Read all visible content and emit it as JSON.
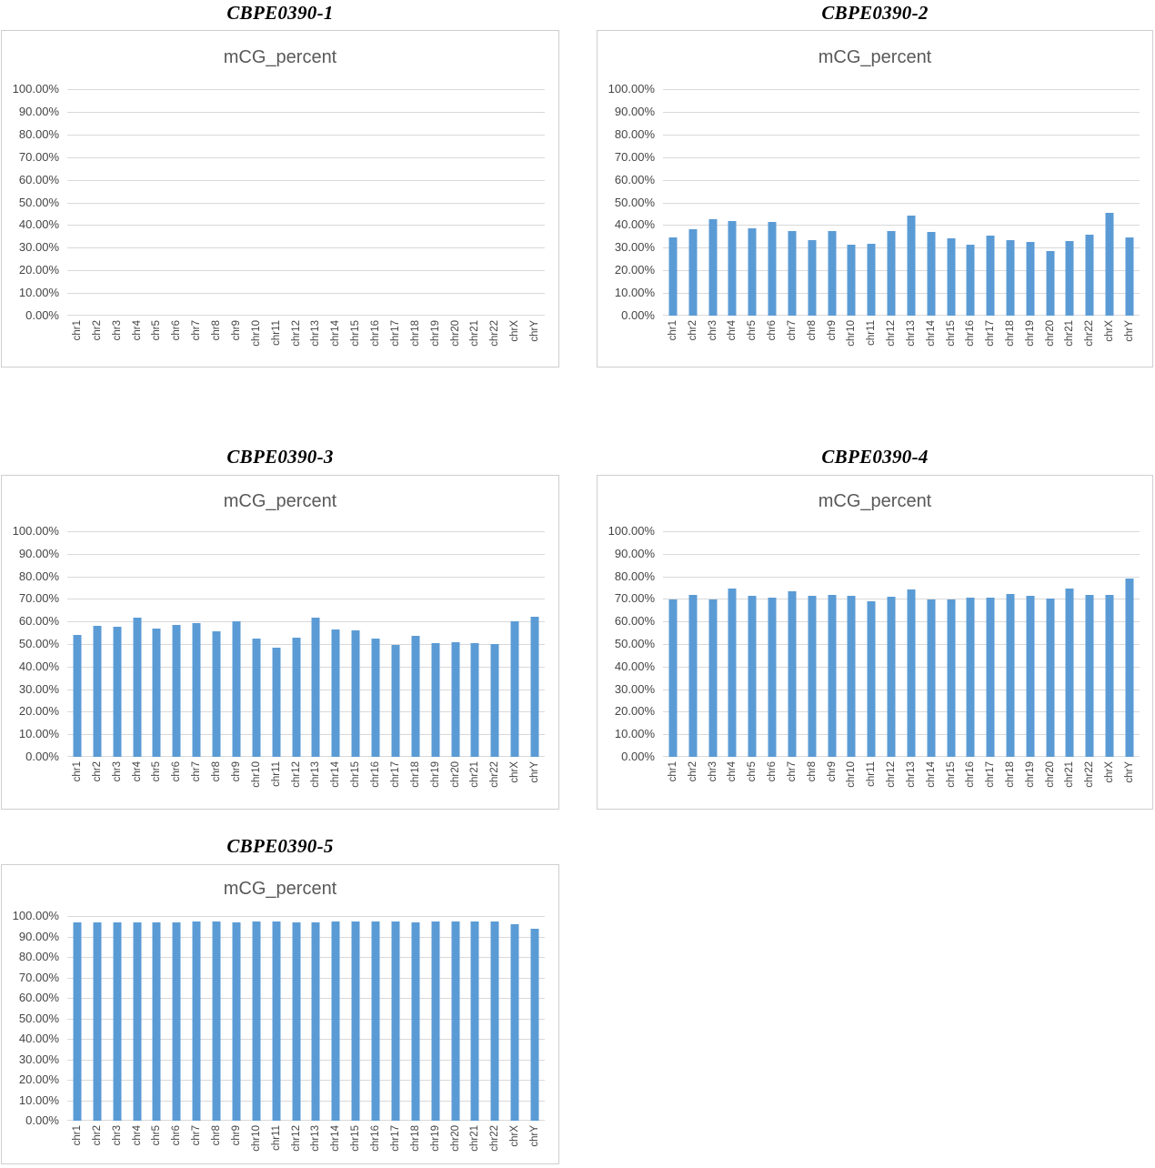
{
  "figure_header": "mCG_percent",
  "colors": {
    "bar": "#5b9bd5",
    "gridline": "#d9d9d9",
    "chart_border": "#d0cece",
    "chart_header_text": "#595959",
    "axis_label_text": "#454545",
    "panel_title_text": "#000000",
    "background": "#ffffff"
  },
  "chart_data": [
    {
      "type": "bar",
      "title": "CBPE0390-1",
      "chart_header": "mCG_percent",
      "categories": [
        "chr1",
        "chr2",
        "chr3",
        "chr4",
        "chr5",
        "chr6",
        "chr7",
        "chr8",
        "chr9",
        "chr10",
        "chr11",
        "chr12",
        "chr13",
        "chr14",
        "chr15",
        "chr16",
        "chr17",
        "chr18",
        "chr19",
        "chr20",
        "chr21",
        "chr22",
        "chrX",
        "chrY"
      ],
      "values": [],
      "xlabel": "",
      "ylabel": "",
      "ylim": [
        0,
        100
      ],
      "ytick_step": 10,
      "ytick_labels": [
        "100.00%",
        "90.00%",
        "80.00%",
        "70.00%",
        "60.00%",
        "50.00%",
        "40.00%",
        "30.00%",
        "20.00%",
        "10.00%",
        "0.00%"
      ],
      "grid": true,
      "legend": false,
      "bar_color": "#5b9bd5"
    },
    {
      "type": "bar",
      "title": "CBPE0390-2",
      "chart_header": "mCG_percent",
      "categories": [
        "chr1",
        "chr2",
        "chr3",
        "chr4",
        "chr5",
        "chr6",
        "chr7",
        "chr8",
        "chr9",
        "chr10",
        "chr11",
        "chr12",
        "chr13",
        "chr14",
        "chr15",
        "chr16",
        "chr17",
        "chr18",
        "chr19",
        "chr20",
        "chr21",
        "chr22",
        "chrX",
        "chrY"
      ],
      "values": [
        34.5,
        38.3,
        42.4,
        41.6,
        38.6,
        41.3,
        37.5,
        33.5,
        37.2,
        31.4,
        31.9,
        37.3,
        44.0,
        36.8,
        34.3,
        31.2,
        35.4,
        33.2,
        32.5,
        28.6,
        32.9,
        35.9,
        45.5,
        34.6
      ],
      "xlabel": "",
      "ylabel": "",
      "ylim": [
        0,
        100
      ],
      "ytick_step": 10,
      "ytick_labels": [
        "100.00%",
        "90.00%",
        "80.00%",
        "70.00%",
        "60.00%",
        "50.00%",
        "40.00%",
        "30.00%",
        "20.00%",
        "10.00%",
        "0.00%"
      ],
      "grid": true,
      "legend": false,
      "bar_color": "#5b9bd5"
    },
    {
      "type": "bar",
      "title": "CBPE0390-3",
      "chart_header": "mCG_percent",
      "categories": [
        "chr1",
        "chr2",
        "chr3",
        "chr4",
        "chr5",
        "chr6",
        "chr7",
        "chr8",
        "chr9",
        "chr10",
        "chr11",
        "chr12",
        "chr13",
        "chr14",
        "chr15",
        "chr16",
        "chr17",
        "chr18",
        "chr19",
        "chr20",
        "chr21",
        "chr22",
        "chrX",
        "chrY"
      ],
      "values": [
        53.9,
        57.9,
        57.5,
        61.9,
        56.7,
        58.3,
        59.2,
        55.5,
        59.9,
        52.5,
        48.4,
        52.7,
        61.8,
        56.6,
        55.9,
        52.3,
        49.8,
        53.8,
        50.5,
        51.0,
        50.6,
        50.2,
        60.1,
        62.0
      ],
      "xlabel": "",
      "ylabel": "",
      "ylim": [
        0,
        100
      ],
      "ytick_step": 10,
      "ytick_labels": [
        "100.00%",
        "90.00%",
        "80.00%",
        "70.00%",
        "60.00%",
        "50.00%",
        "40.00%",
        "30.00%",
        "20.00%",
        "10.00%",
        "0.00%"
      ],
      "grid": true,
      "legend": false,
      "bar_color": "#5b9bd5"
    },
    {
      "type": "bar",
      "title": "CBPE0390-4",
      "chart_header": "mCG_percent",
      "categories": [
        "chr1",
        "chr2",
        "chr3",
        "chr4",
        "chr5",
        "chr6",
        "chr7",
        "chr8",
        "chr9",
        "chr10",
        "chr11",
        "chr12",
        "chr13",
        "chr14",
        "chr15",
        "chr16",
        "chr17",
        "chr18",
        "chr19",
        "chr20",
        "chr21",
        "chr22",
        "chrX",
        "chrY"
      ],
      "values": [
        69.6,
        71.9,
        69.9,
        74.5,
        71.4,
        70.6,
        73.3,
        71.3,
        71.8,
        71.2,
        69.0,
        70.9,
        74.2,
        69.8,
        69.9,
        70.6,
        70.6,
        72.0,
        71.3,
        70.2,
        74.5,
        71.9,
        71.8,
        79.0
      ],
      "xlabel": "",
      "ylabel": "",
      "ylim": [
        0,
        100
      ],
      "ytick_step": 10,
      "ytick_labels": [
        "100.00%",
        "90.00%",
        "80.00%",
        "70.00%",
        "60.00%",
        "50.00%",
        "40.00%",
        "30.00%",
        "20.00%",
        "10.00%",
        "0.00%"
      ],
      "grid": true,
      "legend": false,
      "bar_color": "#5b9bd5"
    },
    {
      "type": "bar",
      "title": "CBPE0390-5",
      "chart_header": "mCG_percent",
      "categories": [
        "chr1",
        "chr2",
        "chr3",
        "chr4",
        "chr5",
        "chr6",
        "chr7",
        "chr8",
        "chr9",
        "chr10",
        "chr11",
        "chr12",
        "chr13",
        "chr14",
        "chr15",
        "chr16",
        "chr17",
        "chr18",
        "chr19",
        "chr20",
        "chr21",
        "chr22",
        "chrX",
        "chrY"
      ],
      "values": [
        96.9,
        97.0,
        96.9,
        96.9,
        97.1,
        97.0,
        97.2,
        97.2,
        97.0,
        97.2,
        97.2,
        96.9,
        96.9,
        97.3,
        97.2,
        97.5,
        97.3,
        97.0,
        97.5,
        97.2,
        97.2,
        97.4,
        96.1,
        93.8
      ],
      "xlabel": "",
      "ylabel": "",
      "ylim": [
        0,
        100
      ],
      "ytick_step": 10,
      "ytick_labels": [
        "100.00%",
        "90.00%",
        "80.00%",
        "70.00%",
        "60.00%",
        "50.00%",
        "40.00%",
        "30.00%",
        "20.00%",
        "10.00%",
        "0.00%"
      ],
      "grid": true,
      "legend": false,
      "bar_color": "#5b9bd5"
    }
  ]
}
